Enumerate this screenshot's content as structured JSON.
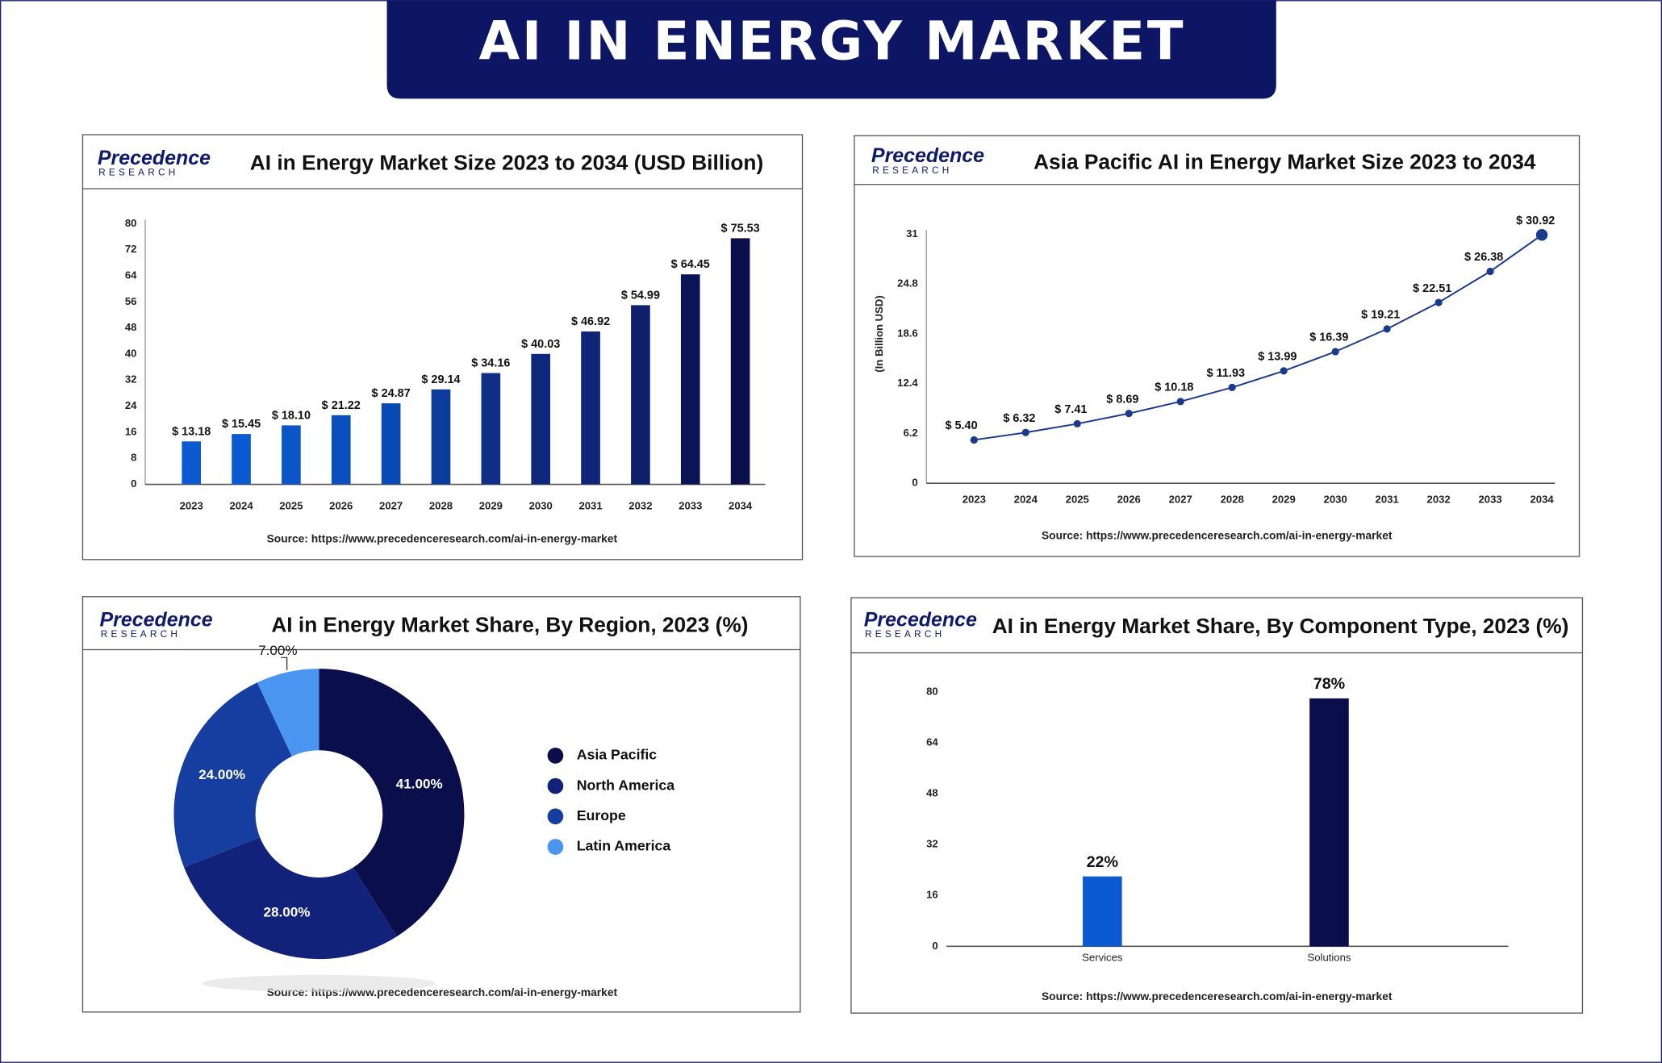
{
  "title": "AI IN ENERGY MARKET",
  "logo": {
    "name": "Precedence",
    "tagline": "RESEARCH"
  },
  "chart_data": [
    {
      "type": "bar",
      "title": "AI in Energy Market Size 2023 to 2034 (USD Billion)",
      "categories": [
        "2023",
        "2024",
        "2025",
        "2026",
        "2027",
        "2028",
        "2029",
        "2030",
        "2031",
        "2032",
        "2033",
        "2034"
      ],
      "values": [
        13.18,
        15.45,
        18.1,
        21.22,
        24.87,
        29.14,
        34.16,
        40.03,
        46.92,
        54.99,
        64.45,
        75.53
      ],
      "value_labels": [
        "$ 13.18",
        "$ 15.45",
        "$ 18.10",
        "$ 21.22",
        "$ 24.87",
        "$ 29.14",
        "$ 34.16",
        "$ 40.03",
        "$ 46.92",
        "$ 54.99",
        "$ 64.45",
        "$ 75.53"
      ],
      "colors": [
        "#0b5ad2",
        "#0b5ad2",
        "#0b55c9",
        "#0b4fbf",
        "#0a4ab5",
        "#0c3b9c",
        "#0f2f86",
        "#10287c",
        "#102577",
        "#0f1f6b",
        "#0b1457",
        "#0a0f4c"
      ],
      "ylim": [
        0,
        80
      ],
      "yticks": [
        0,
        8,
        16,
        24,
        32,
        40,
        48,
        56,
        64,
        72,
        80
      ],
      "source": "Source: https://www.precedenceresearch.com/ai-in-energy-market"
    },
    {
      "type": "line",
      "title": "Asia Pacific AI in Energy Market Size 2023 to 2034",
      "categories": [
        "2023",
        "2024",
        "2025",
        "2026",
        "2027",
        "2028",
        "2029",
        "2030",
        "2031",
        "2032",
        "2033",
        "2034"
      ],
      "values": [
        5.4,
        6.32,
        7.41,
        8.69,
        10.18,
        11.93,
        13.99,
        16.39,
        19.21,
        22.51,
        26.38,
        30.92
      ],
      "value_labels": [
        "$ 5.40",
        "$ 6.32",
        "$ 7.41",
        "$ 8.69",
        "$ 10.18",
        "$ 11.93",
        "$ 13.99",
        "$ 16.39",
        "$ 19.21",
        "$ 22.51",
        "$ 26.38",
        "$ 30.92"
      ],
      "color": "#1b3a8c",
      "ylabel": "(In Billion USD)",
      "ylim": [
        0,
        31
      ],
      "yticks": [
        0,
        6.2,
        12.4,
        18.6,
        24.8,
        31
      ],
      "source": "Source: https://www.precedenceresearch.com/ai-in-energy-market"
    },
    {
      "type": "pie",
      "title": "AI in Energy Market Share, By Region, 2023 (%)",
      "categories": [
        "Asia Pacific",
        "North America",
        "Europe",
        "Latin America"
      ],
      "values": [
        41,
        28,
        24,
        7
      ],
      "value_labels": [
        "41.00%",
        "28.00%",
        "24.00%",
        "7.00%"
      ],
      "colors": [
        "#0a0f4c",
        "#12217a",
        "#163ea0",
        "#4a95f0"
      ],
      "source": "Source: https://www.precedenceresearch.com/ai-in-energy-market"
    },
    {
      "type": "bar",
      "title": "AI in Energy Market Share, By Component Type, 2023 (%)",
      "categories": [
        "Services",
        "Solutions"
      ],
      "values": [
        22,
        78
      ],
      "value_labels": [
        "22%",
        "78%"
      ],
      "colors": [
        "#0b5ad2",
        "#0a0f4c"
      ],
      "ylim": [
        0,
        80
      ],
      "yticks": [
        0,
        16,
        32,
        48,
        64,
        80
      ],
      "source": "Source: https://www.precedenceresearch.com/ai-in-energy-market"
    }
  ]
}
